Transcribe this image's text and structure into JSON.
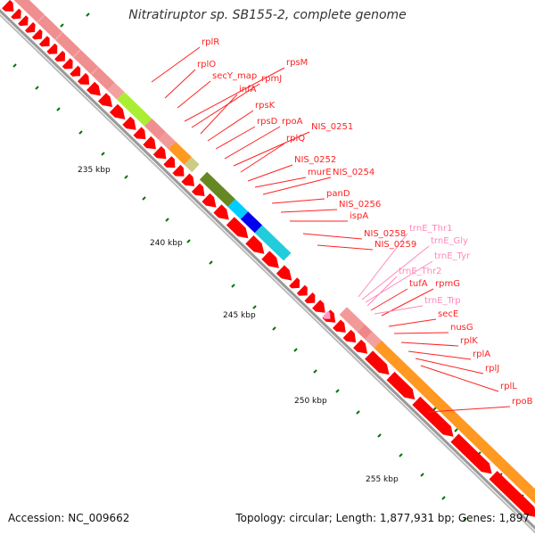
{
  "title": "Nitratiruptor sp. SB155-2, complete genome",
  "accession": "Accession: NC_009662",
  "summary": "Topology: circular; Length: 1,877,931 bp; Genes: 1,897",
  "ruler": [
    "235 kbp",
    "240 kbp",
    "245 kbp",
    "250 kbp",
    "255 kbp"
  ],
  "colors": {
    "forward_cds": "#ee8888",
    "reverse_cds": "#ff0000",
    "trna": "#ff99cc",
    "label_line": "#ff2222",
    "trna_label": "#ff88bb",
    "tick": "#007700"
  },
  "forward_features": [
    {
      "color": "#f08f8f"
    },
    {
      "color": "#f2a0a0"
    },
    {
      "color": "#aaee33"
    },
    {
      "color": "#f08f8f"
    },
    {
      "color": "#f29a9a"
    },
    {
      "color": "#ff9922"
    },
    {
      "color": "#cccc88"
    },
    {
      "color": "#668822"
    },
    {
      "color": "#00ccff"
    },
    {
      "color": "#0000ee"
    },
    {
      "color": "#22ccdd"
    },
    {
      "color": "#f29a9a"
    },
    {
      "color": "#ee8888"
    },
    {
      "color": "#f2a0a0"
    },
    {
      "color": "#ff9922"
    }
  ],
  "labels": [
    {
      "text": "rplR",
      "kind": "gene"
    },
    {
      "text": "rplO",
      "kind": "gene"
    },
    {
      "text": "secY_map",
      "kind": "gene"
    },
    {
      "text": "rpsM",
      "kind": "gene"
    },
    {
      "text": "rpmJ",
      "kind": "gene"
    },
    {
      "text": "infA",
      "kind": "gene"
    },
    {
      "text": "rpsK",
      "kind": "gene"
    },
    {
      "text": "rpsD",
      "kind": "gene"
    },
    {
      "text": "rpoA",
      "kind": "gene"
    },
    {
      "text": "NIS_0251",
      "kind": "gene"
    },
    {
      "text": "rplQ",
      "kind": "gene"
    },
    {
      "text": "NIS_0252",
      "kind": "gene"
    },
    {
      "text": "murE",
      "kind": "gene"
    },
    {
      "text": "NIS_0254",
      "kind": "gene"
    },
    {
      "text": "panD",
      "kind": "gene"
    },
    {
      "text": "NIS_0256",
      "kind": "gene"
    },
    {
      "text": "ispA",
      "kind": "gene"
    },
    {
      "text": "NIS_0258",
      "kind": "gene"
    },
    {
      "text": "trnE_Thr1",
      "kind": "trna"
    },
    {
      "text": "NIS_0259",
      "kind": "gene"
    },
    {
      "text": "trnE_Gly",
      "kind": "trna"
    },
    {
      "text": "trnE_Tyr",
      "kind": "trna"
    },
    {
      "text": "trnE_Thr2",
      "kind": "trna"
    },
    {
      "text": "tufA",
      "kind": "gene"
    },
    {
      "text": "rpmG",
      "kind": "gene"
    },
    {
      "text": "trnE_Trp",
      "kind": "trna"
    },
    {
      "text": "secE",
      "kind": "gene"
    },
    {
      "text": "nusG",
      "kind": "gene"
    },
    {
      "text": "rplK",
      "kind": "gene"
    },
    {
      "text": "rplA",
      "kind": "gene"
    },
    {
      "text": "rplJ",
      "kind": "gene"
    },
    {
      "text": "rplL",
      "kind": "gene"
    },
    {
      "text": "rpoB",
      "kind": "gene"
    }
  ]
}
